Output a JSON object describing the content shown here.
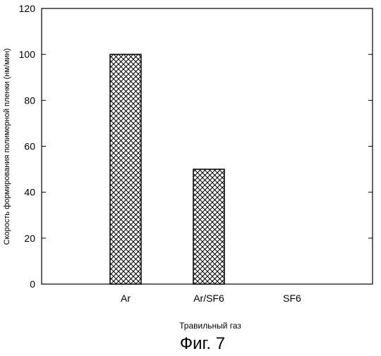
{
  "chart_data": {
    "type": "bar",
    "title": "",
    "xlabel": "Травильный газ",
    "ylabel": "Скорость формирования полимерной пленки (нм/мин)",
    "categories": [
      "Ar",
      "Ar/SF6",
      "SF6"
    ],
    "values": [
      100,
      50,
      0
    ],
    "ylim": [
      0,
      120
    ],
    "yticks": [
      0,
      20,
      40,
      60,
      80,
      100,
      120
    ],
    "grid": false,
    "legend": "none",
    "bar_fill": "crosshatch",
    "colors": {
      "bar_stroke": "#000000",
      "hatch": "#000000",
      "background": "#ffffff"
    }
  },
  "caption": "Фиг. 7"
}
